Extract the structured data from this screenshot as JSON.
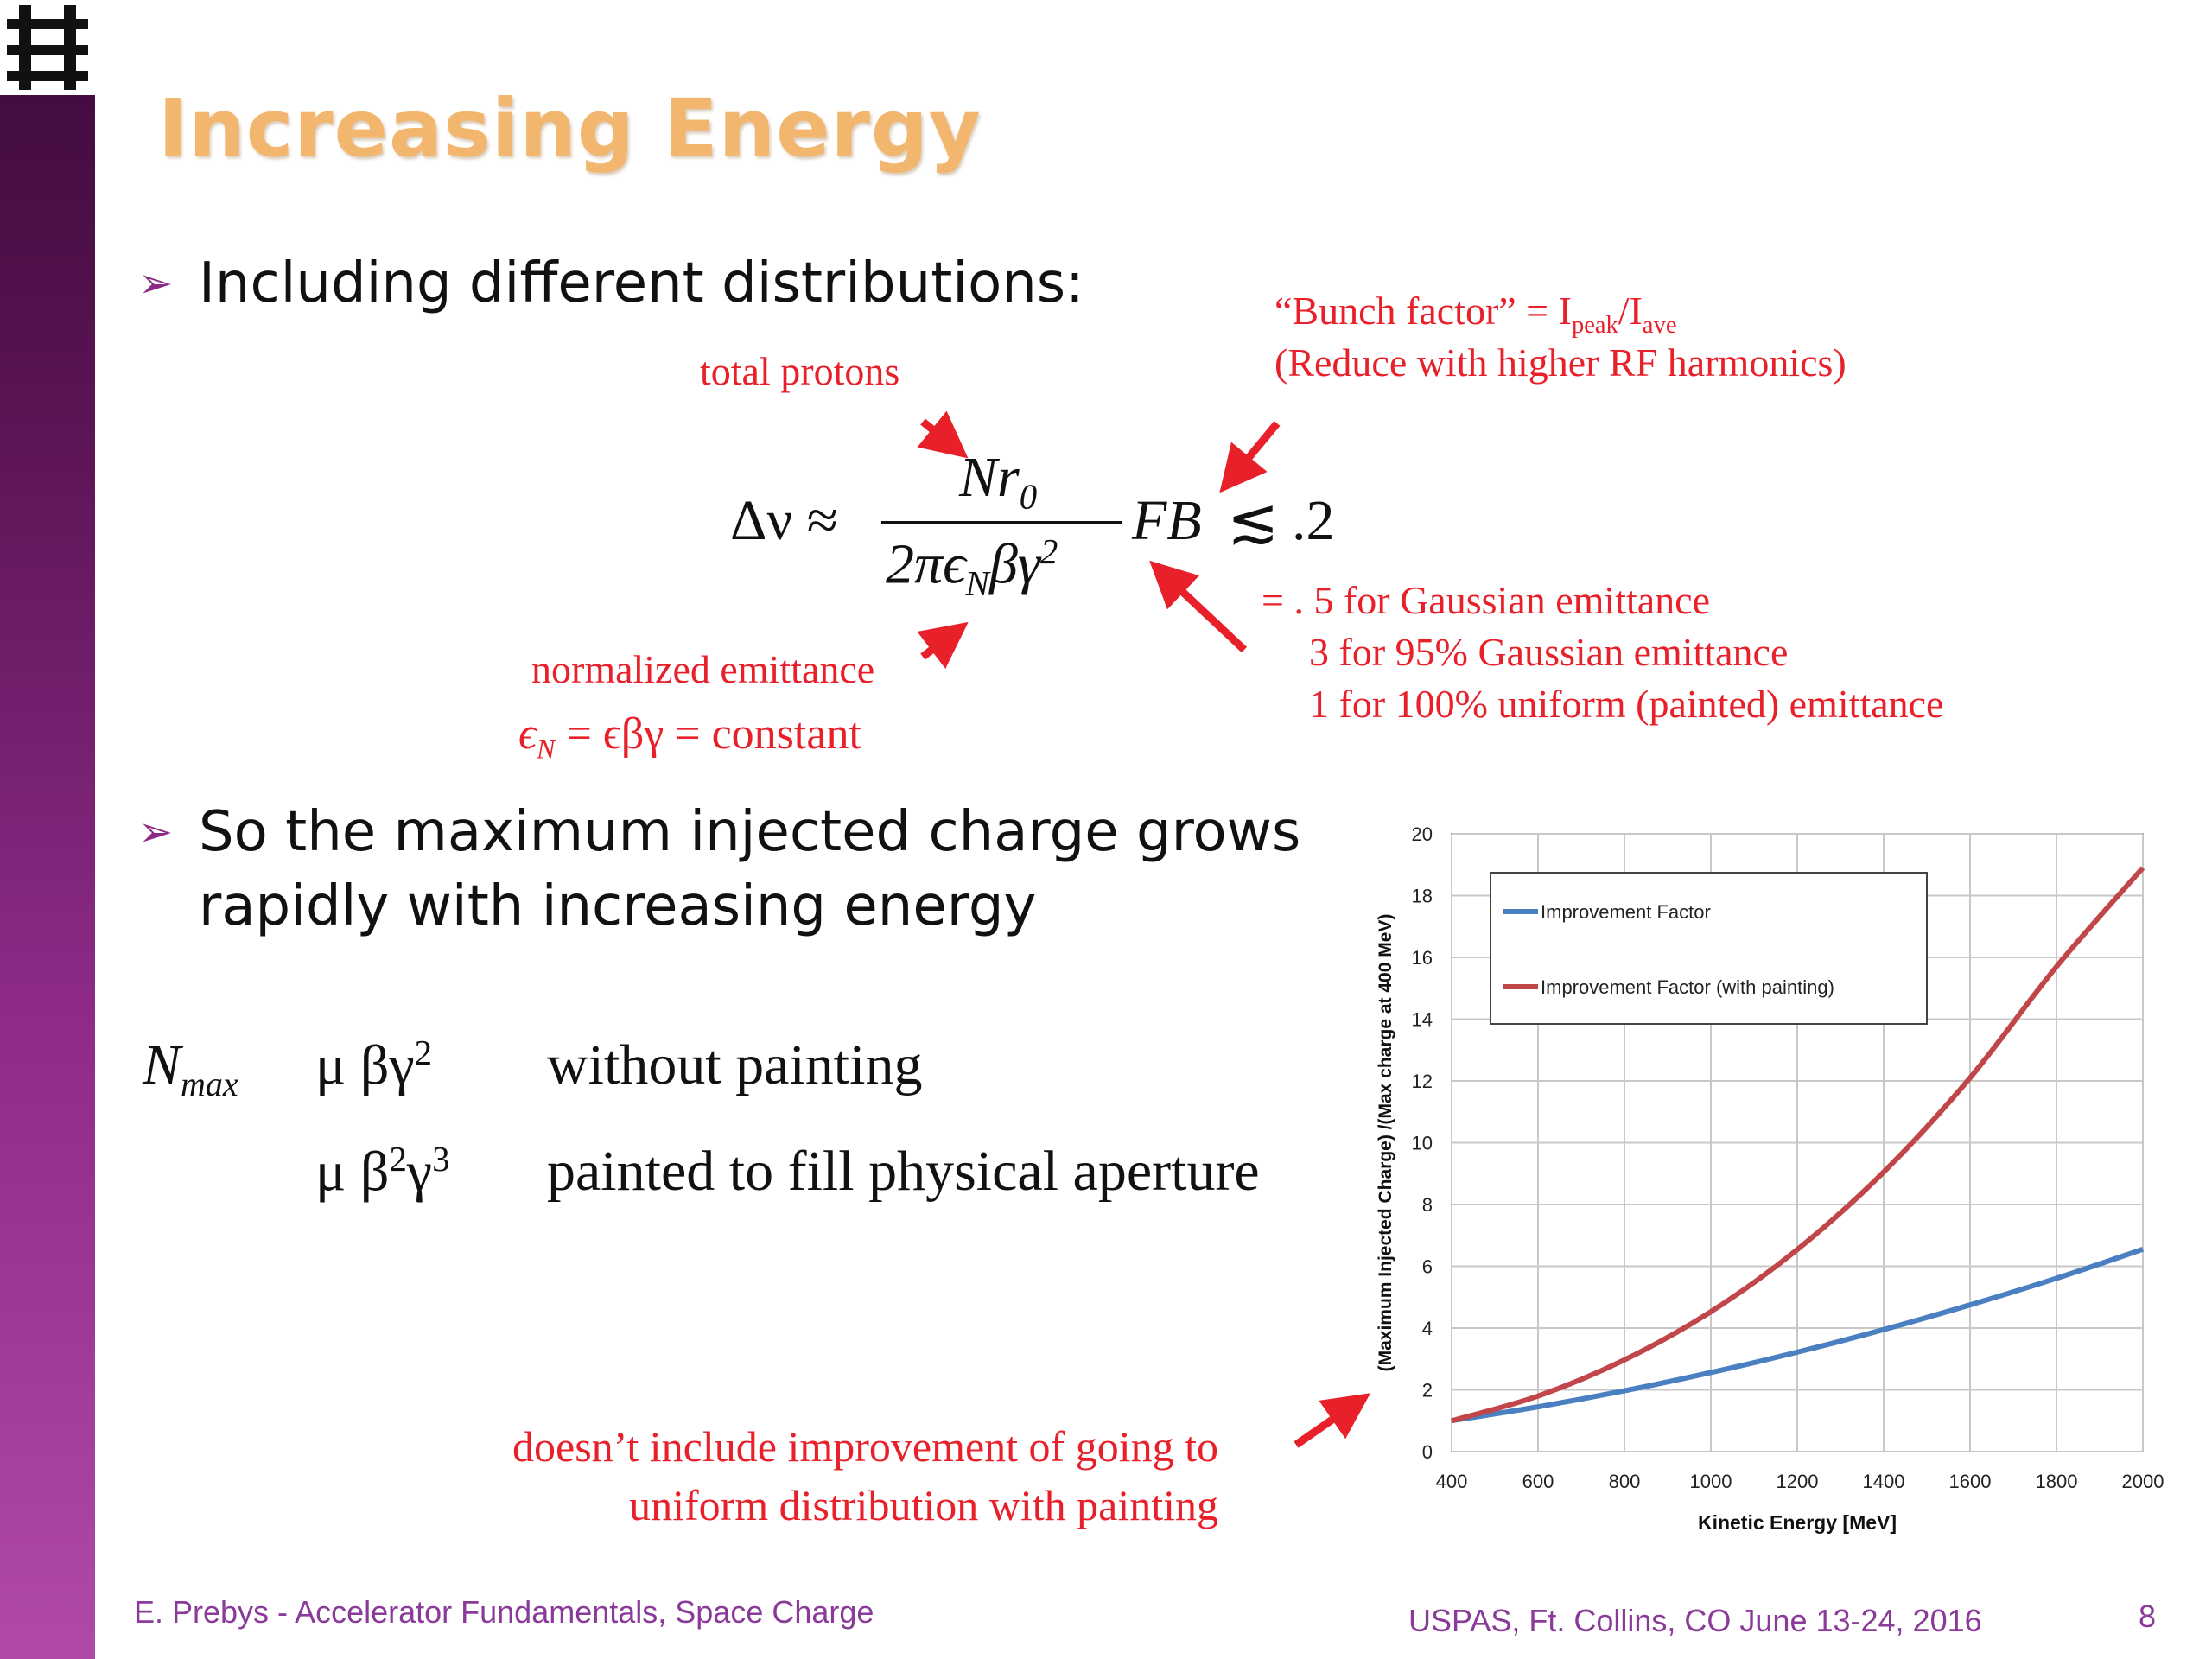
{
  "slide": {
    "title": "Increasing Energy",
    "bullets": [
      "Including different distributions:",
      "So the maximum injected charge grows",
      "rapidly with increasing energy"
    ]
  },
  "annotations": {
    "total_protons": "total protons",
    "normalized_emittance": "normalized emittance",
    "emittance_relation_eq": "= ϵβγ = constant",
    "bunch_factor_prefix": "“Bunch factor” = I",
    "bunch_factor_peak": "peak",
    "bunch_factor_slash": "/I",
    "bunch_factor_ave": "ave",
    "bunch_factor_note": "(Reduce with higher RF harmonics)",
    "form_factor_lines": [
      "= . 5 for Gaussian emittance",
      "3 for 95% Gaussian emittance",
      "1 for 100% uniform (painted) emittance"
    ],
    "disclaimer_lines": [
      "doesn’t include improvement of going to",
      "uniform distribution with painting"
    ]
  },
  "formula": {
    "lhs": "Δν ≈",
    "numerator": "Nr",
    "numerator_sub": "0",
    "denominator_a": "2πϵ",
    "denominator_sub": "N",
    "denominator_b": "βγ",
    "denominator_sup": "2",
    "rhs": "FB",
    "relation": "≲",
    "limit": ".2"
  },
  "scaling": {
    "symbol": "N",
    "symbol_sub": "max",
    "row1_prop": "μ βγ",
    "row1_sup": "2",
    "row1_text": "without painting",
    "row2_prop_a": "μ β",
    "row2_sup_a": "2",
    "row2_prop_b": "γ",
    "row2_sup_b": "3",
    "row2_text": "painted to fill physical aperture"
  },
  "footer": {
    "left": "E. Prebys - Accelerator Fundamentals, Space Charge",
    "center": "USPAS, Ft. Collins, CO June 13-24, 2016",
    "page": "8"
  },
  "colors": {
    "title": "#f2b66e",
    "annotation_red": "#e8202a",
    "series_blue": "#4a7fc1",
    "series_red": "#c0464a",
    "footer": "#8a3a98"
  },
  "chart_data": {
    "type": "line",
    "xlabel": "Kinetic Energy [MeV]",
    "ylabel": "(Maximum Injected Charge) /(Max charge at 400 MeV)",
    "xlim": [
      400,
      2000
    ],
    "ylim": [
      0,
      20
    ],
    "xticks": [
      400,
      600,
      800,
      1000,
      1200,
      1400,
      1600,
      1800,
      2000
    ],
    "yticks": [
      0,
      2,
      4,
      6,
      8,
      10,
      12,
      14,
      16,
      18,
      20
    ],
    "grid": true,
    "legend_position": "top-left",
    "x": [
      400,
      600,
      800,
      1000,
      1200,
      1400,
      1600,
      1800,
      2000
    ],
    "series": [
      {
        "name": "Improvement Factor",
        "color": "#4a7fc1",
        "values": [
          1.0,
          1.45,
          1.97,
          2.56,
          3.22,
          3.95,
          4.75,
          5.61,
          6.55
        ]
      },
      {
        "name": "Improvement Factor (with painting)",
        "color": "#c0464a",
        "values": [
          1.0,
          1.8,
          2.97,
          4.53,
          6.54,
          9.05,
          12.1,
          15.7,
          18.9
        ]
      }
    ]
  }
}
